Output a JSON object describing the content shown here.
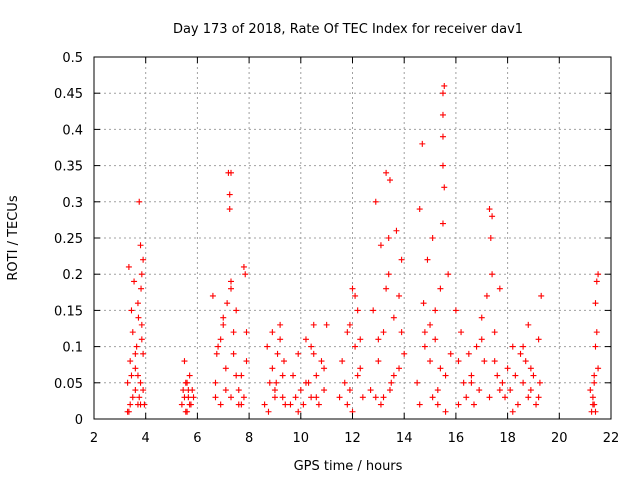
{
  "chart_data": {
    "type": "scatter",
    "title": "Day 173 of 2018, Rate Of TEC Index for receiver dav1",
    "xlabel": "GPS time / hours",
    "ylabel": "ROTI / TECUs",
    "xlim": [
      2,
      22
    ],
    "ylim": [
      0,
      0.5
    ],
    "x_ticks": [
      2,
      4,
      6,
      8,
      10,
      12,
      14,
      16,
      18,
      20,
      22
    ],
    "x_tick_labels": [
      "2",
      "4",
      "6",
      "8",
      "10",
      "12",
      "14",
      "16",
      "18",
      "20",
      "22"
    ],
    "y_ticks": [
      0,
      0.05,
      0.1,
      0.15,
      0.2,
      0.25,
      0.3,
      0.35,
      0.4,
      0.45,
      0.5
    ],
    "y_tick_labels": [
      "0",
      "0.05",
      "0.1",
      "0.15",
      "0.2",
      "0.25",
      "0.3",
      "0.35",
      "0.4",
      "0.45",
      "0.5"
    ],
    "grid": true,
    "marker": "+",
    "color": "#ff0000",
    "series": [
      {
        "name": "ROTI",
        "x": [
          3.3,
          3.3,
          3.35,
          3.4,
          3.4,
          3.45,
          3.5,
          3.5,
          3.55,
          3.6,
          3.6,
          3.65,
          3.7,
          3.7,
          3.75,
          3.8,
          3.8,
          3.85,
          3.9,
          3.9,
          3.7,
          3.75,
          3.8,
          3.85,
          3.85,
          3.9,
          3.95,
          3.35,
          3.45,
          3.6,
          3.72,
          3.82,
          5.4,
          5.45,
          5.5,
          5.55,
          5.6,
          5.65,
          5.7,
          5.75,
          5.8,
          5.85,
          5.5,
          5.6,
          5.7,
          5.55,
          5.65,
          6.6,
          6.7,
          6.8,
          6.9,
          7.0,
          7.1,
          7.2,
          7.3,
          7.4,
          7.5,
          7.6,
          7.7,
          7.8,
          7.9,
          7.25,
          7.25,
          7.3,
          7.3,
          7.85,
          7.9,
          6.7,
          6.9,
          7.1,
          7.3,
          7.5,
          7.7,
          6.75,
          7.0,
          7.4,
          7.6,
          7.8,
          7.15,
          8.6,
          8.7,
          8.8,
          8.9,
          9.0,
          9.1,
          9.2,
          9.3,
          9.4,
          8.9,
          9.0,
          9.2,
          9.3,
          9.35,
          8.75,
          9.05,
          9.6,
          9.7,
          9.8,
          9.9,
          10.0,
          10.1,
          10.2,
          10.3,
          10.4,
          10.5,
          10.6,
          10.7,
          10.8,
          10.9,
          11.0,
          10.4,
          10.6,
          10.9,
          9.9,
          10.2,
          10.5,
          11.5,
          11.6,
          11.7,
          11.8,
          11.9,
          12.0,
          12.1,
          12.2,
          12.3,
          12.4,
          12.1,
          12.2,
          11.9,
          12.3,
          11.8,
          12.0,
          12.7,
          12.8,
          12.9,
          13.0,
          13.1,
          13.2,
          13.3,
          13.4,
          13.5,
          13.6,
          13.7,
          13.8,
          13.9,
          14.0,
          13.3,
          13.4,
          13.45,
          13.0,
          13.1,
          13.2,
          13.8,
          13.9,
          13.45,
          12.9,
          13.6,
          14.5,
          14.6,
          14.7,
          14.8,
          14.9,
          15.0,
          15.1,
          15.2,
          15.3,
          15.4,
          15.5,
          15.6,
          15.7,
          15.8,
          15.5,
          15.5,
          15.55,
          15.5,
          15.55,
          15.5,
          14.75,
          14.8,
          15.1,
          15.3,
          15.0,
          15.4,
          14.6,
          15.2,
          15.6,
          16.0,
          16.1,
          16.2,
          16.3,
          16.4,
          16.5,
          16.6,
          16.7,
          16.8,
          16.9,
          17.0,
          17.1,
          17.2,
          17.3,
          17.4,
          17.5,
          17.6,
          17.7,
          17.3,
          17.35,
          17.4,
          17.5,
          17.7,
          16.1,
          16.6,
          17.0,
          17.8,
          17.9,
          18.0,
          18.1,
          18.2,
          18.3,
          18.4,
          18.5,
          18.6,
          18.7,
          18.8,
          18.9,
          19.0,
          19.1,
          19.2,
          19.3,
          18.6,
          18.8,
          18.9,
          19.2,
          19.25,
          18.2,
          21.2,
          21.25,
          21.3,
          21.35,
          21.4,
          21.45,
          21.5,
          21.3,
          21.35,
          21.4,
          21.45,
          21.5,
          21.4,
          21.35
        ],
        "y": [
          0.01,
          0.05,
          0.21,
          0.02,
          0.08,
          0.15,
          0.03,
          0.12,
          0.19,
          0.04,
          0.07,
          0.1,
          0.02,
          0.16,
          0.3,
          0.05,
          0.24,
          0.13,
          0.22,
          0.09,
          0.06,
          0.03,
          0.02,
          0.11,
          0.2,
          0.04,
          0.02,
          0.01,
          0.06,
          0.09,
          0.14,
          0.18,
          0.02,
          0.04,
          0.03,
          0.05,
          0.01,
          0.03,
          0.06,
          0.02,
          0.04,
          0.03,
          0.08,
          0.05,
          0.02,
          0.01,
          0.04,
          0.17,
          0.05,
          0.1,
          0.02,
          0.13,
          0.07,
          0.34,
          0.03,
          0.09,
          0.15,
          0.02,
          0.06,
          0.21,
          0.08,
          0.31,
          0.29,
          0.34,
          0.19,
          0.2,
          0.12,
          0.03,
          0.11,
          0.04,
          0.18,
          0.06,
          0.02,
          0.09,
          0.14,
          0.12,
          0.04,
          0.03,
          0.16,
          0.02,
          0.1,
          0.05,
          0.12,
          0.03,
          0.09,
          0.13,
          0.06,
          0.02,
          0.07,
          0.04,
          0.11,
          0.03,
          0.08,
          0.01,
          0.05,
          0.02,
          0.06,
          0.03,
          0.09,
          0.04,
          0.02,
          0.11,
          0.05,
          0.03,
          0.13,
          0.06,
          0.02,
          0.08,
          0.04,
          0.13,
          0.1,
          0.03,
          0.07,
          0.01,
          0.05,
          0.09,
          0.03,
          0.08,
          0.05,
          0.12,
          0.04,
          0.18,
          0.1,
          0.15,
          0.07,
          0.03,
          0.17,
          0.06,
          0.13,
          0.11,
          0.02,
          0.01,
          0.04,
          0.15,
          0.3,
          0.08,
          0.24,
          0.12,
          0.34,
          0.2,
          0.05,
          0.14,
          0.26,
          0.07,
          0.22,
          0.09,
          0.18,
          0.25,
          0.33,
          0.11,
          0.02,
          0.03,
          0.17,
          0.12,
          0.04,
          0.03,
          0.06,
          0.05,
          0.29,
          0.38,
          0.12,
          0.22,
          0.08,
          0.25,
          0.15,
          0.04,
          0.18,
          0.35,
          0.06,
          0.2,
          0.09,
          0.45,
          0.42,
          0.46,
          0.39,
          0.32,
          0.27,
          0.16,
          0.1,
          0.03,
          0.02,
          0.13,
          0.07,
          0.02,
          0.11,
          0.01,
          0.15,
          0.08,
          0.12,
          0.05,
          0.03,
          0.09,
          0.06,
          0.02,
          0.1,
          0.04,
          0.14,
          0.08,
          0.17,
          0.03,
          0.28,
          0.12,
          0.06,
          0.18,
          0.29,
          0.25,
          0.2,
          0.08,
          0.04,
          0.02,
          0.05,
          0.11,
          0.05,
          0.03,
          0.07,
          0.04,
          0.1,
          0.06,
          0.02,
          0.09,
          0.05,
          0.08,
          0.13,
          0.04,
          0.06,
          0.02,
          0.03,
          0.17,
          0.1,
          0.03,
          0.07,
          0.11,
          0.05,
          0.01,
          0.04,
          0.01,
          0.02,
          0.06,
          0.16,
          0.12,
          0.2,
          0.03,
          0.05,
          0.1,
          0.19,
          0.07,
          0.01,
          0.02
        ]
      }
    ]
  }
}
